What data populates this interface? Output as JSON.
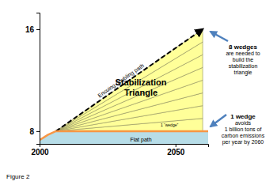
{
  "chart_data": {
    "type": "line",
    "xlim": [
      2000,
      2062
    ],
    "xticks": [
      2000,
      2050
    ],
    "ylim": [
      7,
      17.3
    ],
    "yticks": [
      8,
      16
    ],
    "series": [
      {
        "name": "Ensuing doubling path",
        "type": "line",
        "color": "#000000",
        "line_style": "dashed",
        "marker": "arrow",
        "x": [
          2006,
          2060
        ],
        "values": [
          8,
          16
        ]
      },
      {
        "name": "Flat path",
        "type": "area",
        "color": "#f79646",
        "x": [
          2000,
          2003,
          2006,
          2062
        ],
        "values": [
          7.3,
          7.7,
          8,
          8
        ]
      }
    ],
    "wedges": {
      "x": [
        2006,
        2060
      ],
      "start": 8,
      "ends": [
        8,
        9,
        10,
        11,
        12,
        13,
        14,
        15,
        16
      ],
      "color": "#ffff99"
    },
    "annotations": [
      {
        "lines": [
          "Stabilization",
          "Triangle"
        ]
      },
      {
        "lines": [
          "1 “wedge”"
        ]
      },
      {
        "lines": [
          "8 wedges",
          "are needed to",
          "build the",
          "stabilization",
          "triangle"
        ]
      },
      {
        "lines": [
          "1 wedge",
          "avoids",
          "1 billion tons of",
          "carbon emissions",
          "per year by 2060"
        ]
      }
    ]
  },
  "figure_label": "Figure 2"
}
